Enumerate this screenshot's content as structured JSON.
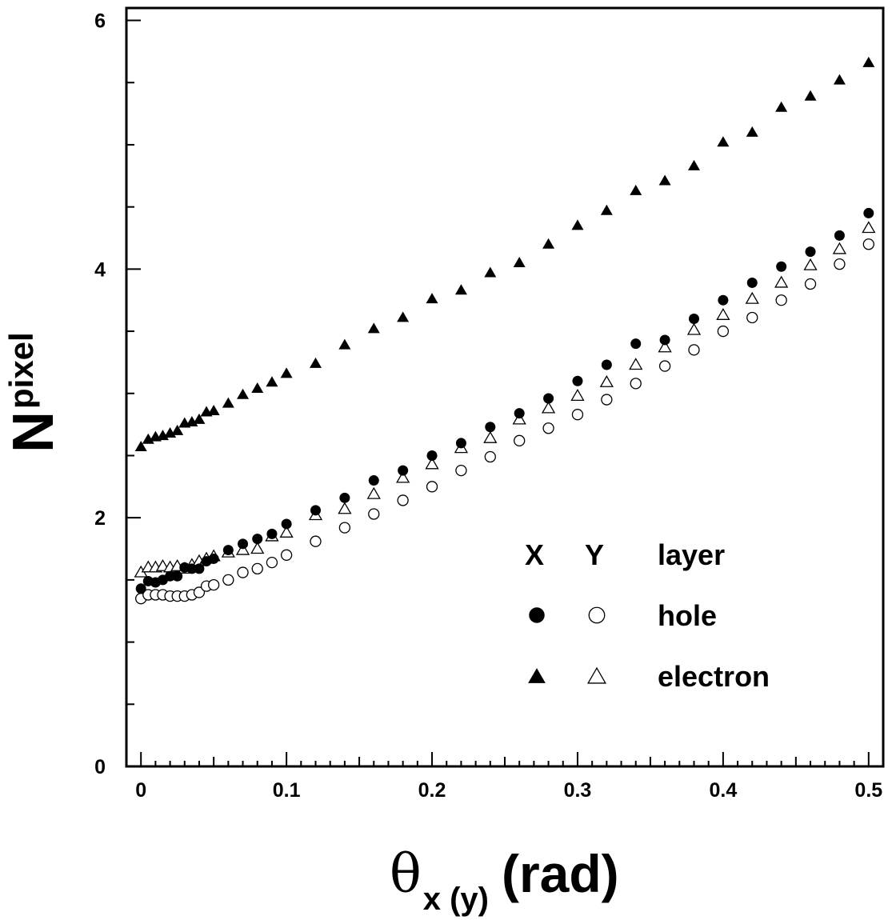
{
  "chart_data": {
    "type": "scatter",
    "title": "",
    "xlabel": {
      "symbol": "θ",
      "subscript": "x (y)",
      "unit": "(rad)"
    },
    "ylabel": {
      "main": "N",
      "subscript": "pixel"
    },
    "xlim": [
      -0.01,
      0.51
    ],
    "ylim": [
      0,
      6.1
    ],
    "xticks": [
      0,
      0.1,
      0.2,
      0.3,
      0.4,
      0.5
    ],
    "xtick_labels": [
      "0",
      "0.1",
      "0.2",
      "0.3",
      "0.4",
      "0.5"
    ],
    "yticks": [
      0,
      2,
      4,
      6
    ],
    "ytick_labels": [
      "0",
      "2",
      "4",
      "6"
    ],
    "yminor_step": 0.5,
    "grid": false,
    "legend": {
      "placement": "lower-right",
      "header": [
        "X",
        "Y",
        "layer"
      ],
      "rows": [
        "hole",
        "electron"
      ]
    },
    "series": [
      {
        "name": "hole",
        "axis": "X",
        "marker": "filled-circle",
        "x": [
          0,
          0.005,
          0.01,
          0.015,
          0.02,
          0.025,
          0.03,
          0.035,
          0.04,
          0.045,
          0.05,
          0.06,
          0.07,
          0.08,
          0.09,
          0.1,
          0.12,
          0.14,
          0.16,
          0.18,
          0.2,
          0.22,
          0.24,
          0.26,
          0.28,
          0.3,
          0.32,
          0.34,
          0.36,
          0.38,
          0.4,
          0.42,
          0.44,
          0.46,
          0.48,
          0.5
        ],
        "y": [
          1.43,
          1.49,
          1.48,
          1.5,
          1.53,
          1.53,
          1.6,
          1.59,
          1.59,
          1.65,
          1.67,
          1.74,
          1.79,
          1.83,
          1.87,
          1.95,
          2.06,
          2.16,
          2.3,
          2.38,
          2.5,
          2.6,
          2.73,
          2.84,
          2.96,
          3.1,
          3.23,
          3.4,
          3.43,
          3.6,
          3.75,
          3.89,
          4.02,
          4.14,
          4.27,
          4.45
        ]
      },
      {
        "name": "hole",
        "axis": "Y",
        "marker": "open-circle",
        "x": [
          0,
          0.005,
          0.01,
          0.015,
          0.02,
          0.025,
          0.03,
          0.035,
          0.04,
          0.045,
          0.05,
          0.06,
          0.07,
          0.08,
          0.09,
          0.1,
          0.12,
          0.14,
          0.16,
          0.18,
          0.2,
          0.22,
          0.24,
          0.26,
          0.28,
          0.3,
          0.32,
          0.34,
          0.36,
          0.38,
          0.4,
          0.42,
          0.44,
          0.46,
          0.48,
          0.5
        ],
        "y": [
          1.35,
          1.38,
          1.38,
          1.38,
          1.37,
          1.37,
          1.37,
          1.38,
          1.4,
          1.45,
          1.46,
          1.5,
          1.56,
          1.59,
          1.64,
          1.7,
          1.81,
          1.92,
          2.03,
          2.14,
          2.25,
          2.38,
          2.49,
          2.62,
          2.72,
          2.83,
          2.95,
          3.08,
          3.22,
          3.35,
          3.5,
          3.61,
          3.75,
          3.88,
          4.04,
          4.2
        ]
      },
      {
        "name": "electron",
        "axis": "X",
        "marker": "filled-triangle",
        "x": [
          0,
          0.005,
          0.01,
          0.015,
          0.02,
          0.025,
          0.03,
          0.035,
          0.04,
          0.045,
          0.05,
          0.06,
          0.07,
          0.08,
          0.09,
          0.1,
          0.12,
          0.14,
          0.16,
          0.18,
          0.2,
          0.22,
          0.24,
          0.26,
          0.28,
          0.3,
          0.32,
          0.34,
          0.36,
          0.38,
          0.4,
          0.42,
          0.44,
          0.46,
          0.48,
          0.5
        ],
        "y": [
          2.57,
          2.63,
          2.65,
          2.66,
          2.68,
          2.7,
          2.76,
          2.77,
          2.79,
          2.85,
          2.86,
          2.92,
          2.99,
          3.04,
          3.09,
          3.16,
          3.24,
          3.39,
          3.52,
          3.61,
          3.76,
          3.83,
          3.97,
          4.05,
          4.2,
          4.35,
          4.47,
          4.63,
          4.71,
          4.83,
          5.02,
          5.1,
          5.3,
          5.39,
          5.52,
          5.66
        ]
      },
      {
        "name": "electron",
        "axis": "Y",
        "marker": "open-triangle",
        "x": [
          0,
          0.005,
          0.01,
          0.015,
          0.02,
          0.025,
          0.03,
          0.035,
          0.04,
          0.045,
          0.05,
          0.06,
          0.07,
          0.08,
          0.09,
          0.1,
          0.12,
          0.14,
          0.16,
          0.18,
          0.2,
          0.22,
          0.24,
          0.26,
          0.28,
          0.3,
          0.32,
          0.34,
          0.36,
          0.38,
          0.4,
          0.42,
          0.44,
          0.46,
          0.48,
          0.5
        ],
        "y": [
          1.56,
          1.6,
          1.6,
          1.61,
          1.6,
          1.61,
          1.59,
          1.62,
          1.65,
          1.67,
          1.69,
          1.72,
          1.74,
          1.75,
          1.85,
          1.88,
          2.02,
          2.07,
          2.19,
          2.32,
          2.43,
          2.56,
          2.64,
          2.79,
          2.88,
          2.98,
          3.09,
          3.23,
          3.37,
          3.51,
          3.63,
          3.76,
          3.89,
          4.03,
          4.16,
          4.33
        ]
      }
    ]
  }
}
